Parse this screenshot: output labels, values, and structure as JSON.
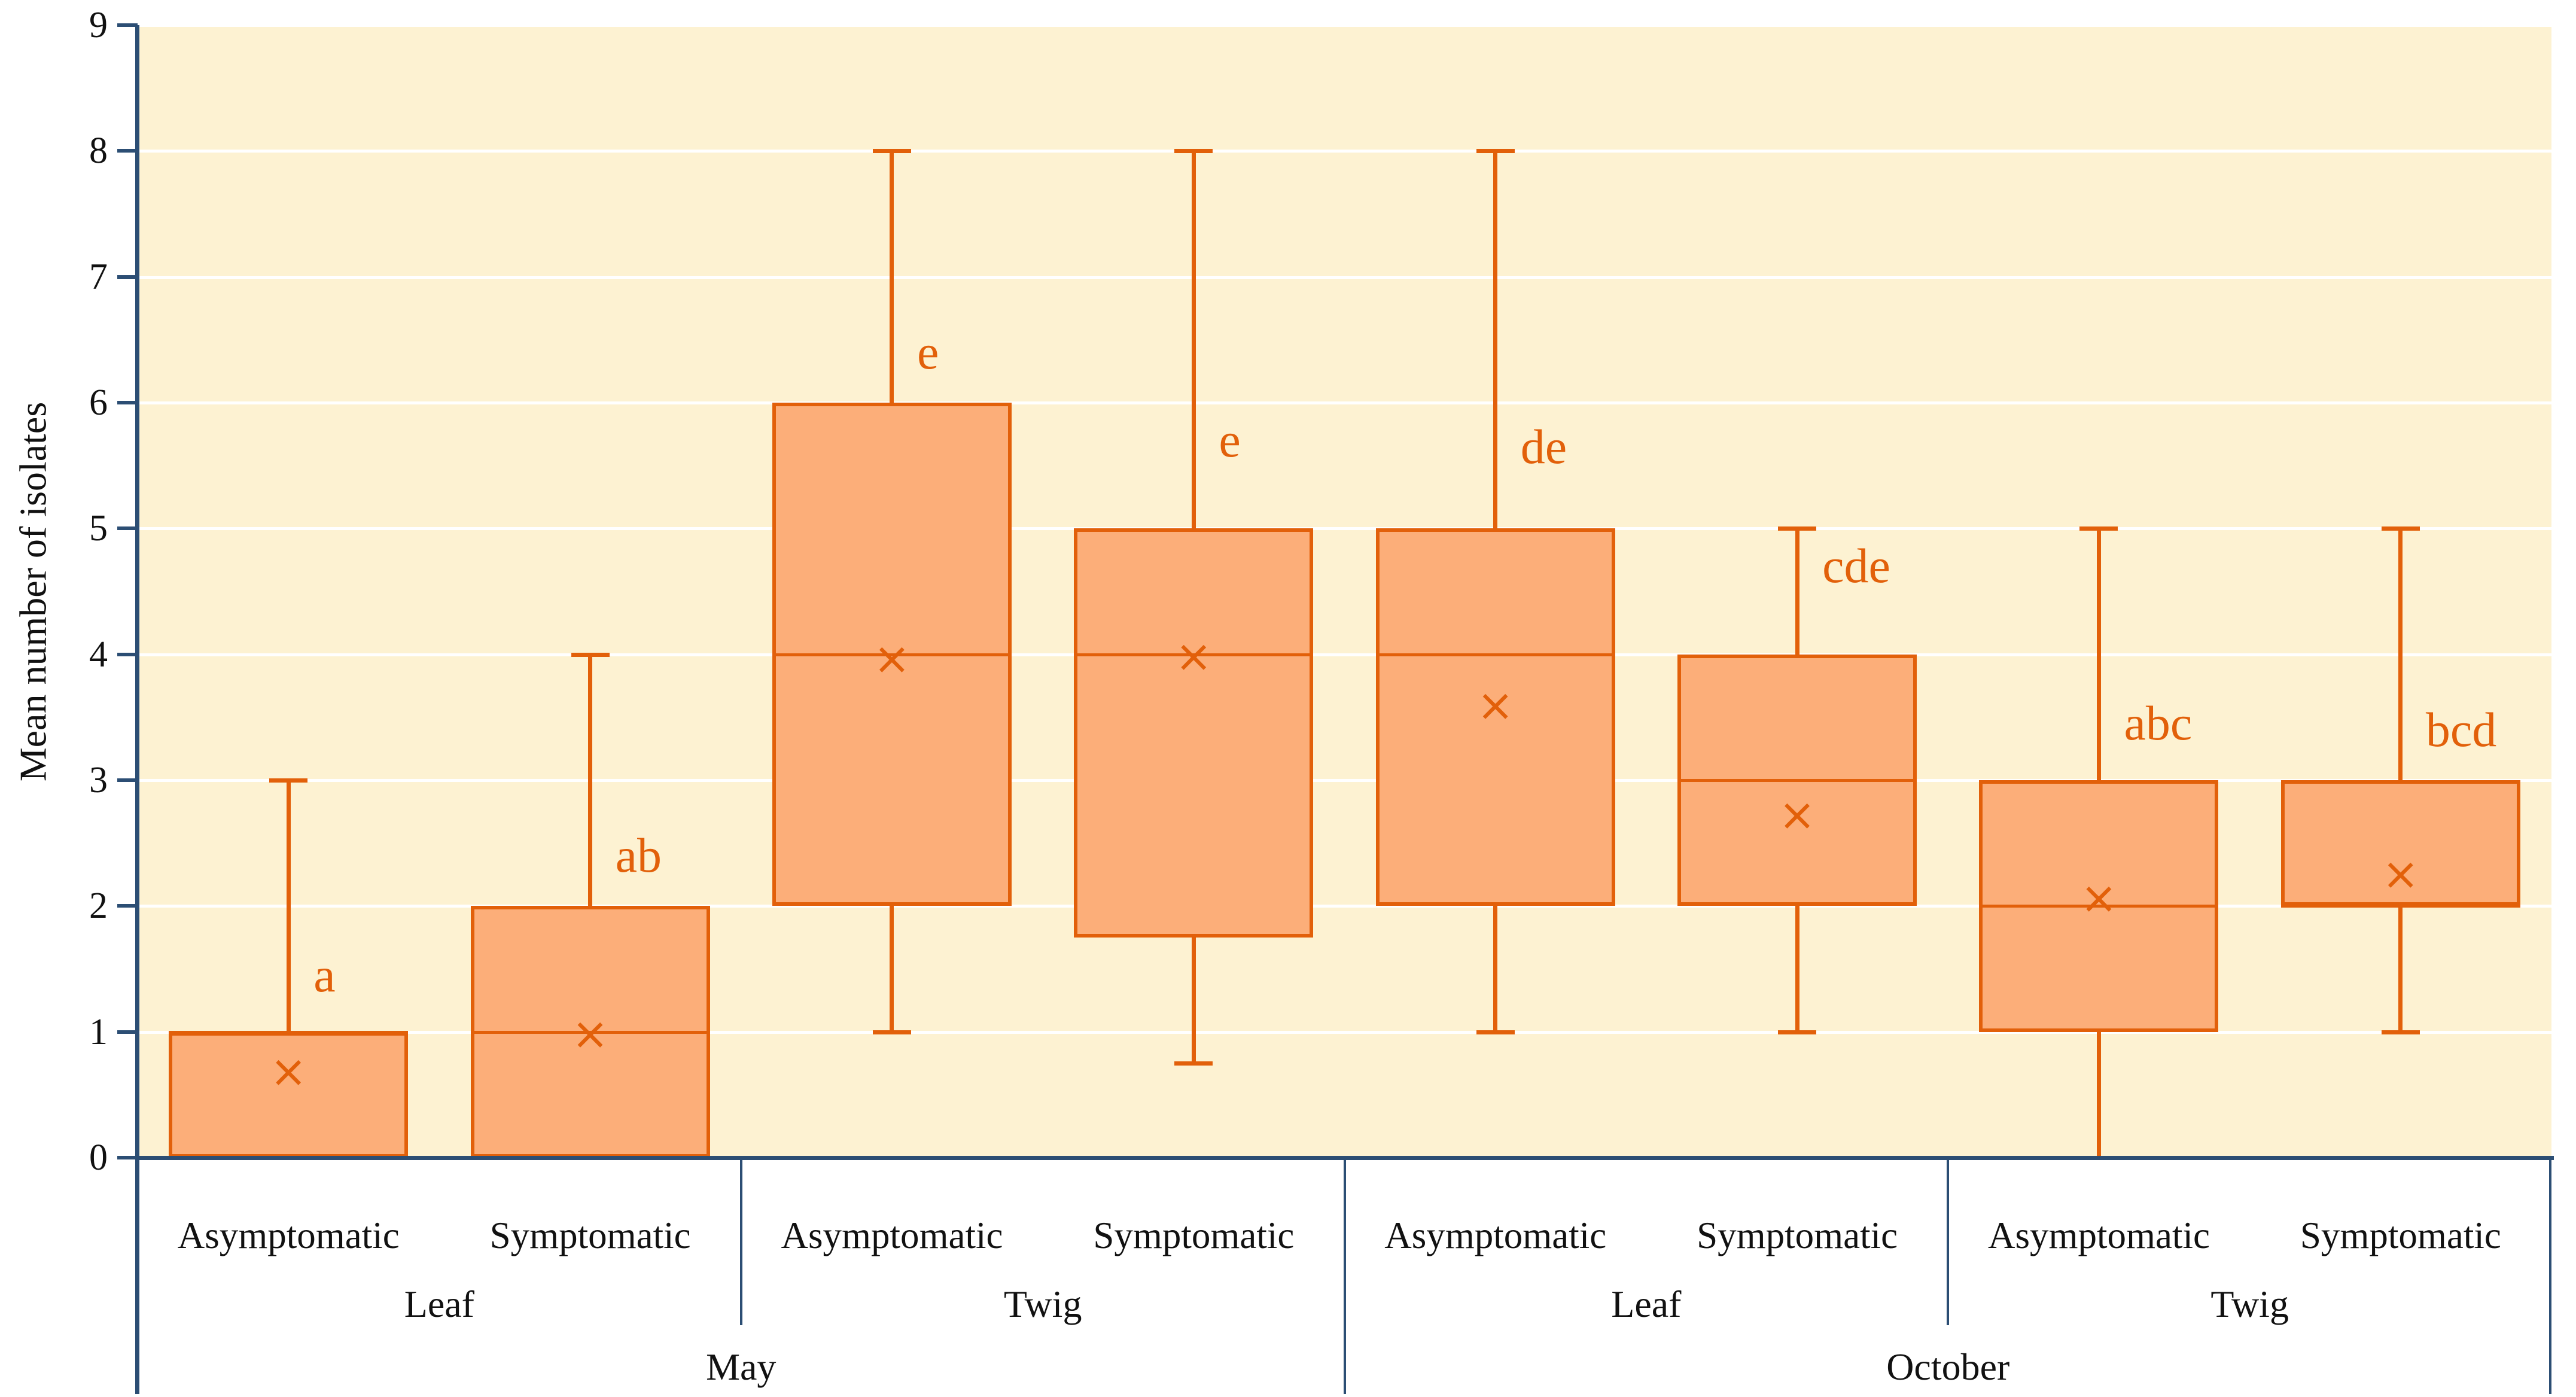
{
  "chart_data": {
    "type": "box",
    "title": "",
    "xlabel": "",
    "ylabel": "Mean number of isolates",
    "ylim": [
      0,
      9
    ],
    "yticks": [
      0,
      1,
      2,
      3,
      4,
      5,
      6,
      7,
      8,
      9
    ],
    "grid": "horizontal white gridlines on cream plot background",
    "legend": "none",
    "plot_background": "#FDF2D2",
    "box_fill": "#FCAE79",
    "box_stroke": "#E2600A",
    "axis_color": "#2C4E74",
    "gridline_color": "#FFFFFF",
    "letter_color": "#E2600A",
    "groups": {
      "months": [
        "May",
        "October"
      ],
      "tissues": [
        "Leaf",
        "Twig"
      ],
      "conditions": [
        "Asymptomatic",
        "Symptomatic"
      ]
    },
    "x_axis": {
      "condition_row": [
        "Asymptomatic",
        "Symptomatic",
        "Asymptomatic",
        "Symptomatic",
        "Asymptomatic",
        "Symptomatic",
        "Asymptomatic",
        "Symptomatic"
      ],
      "tissue_row": [
        "Leaf",
        "Twig",
        "Leaf",
        "Twig"
      ],
      "month_row": [
        "May",
        "October"
      ]
    },
    "series": [
      {
        "month": "May",
        "tissue": "Leaf",
        "condition": "Asymptomatic",
        "min": 0,
        "q1": 0,
        "median": 1,
        "q3": 1,
        "max": 3,
        "mean": 0.67,
        "letter": "a",
        "letter_y": 1.45
      },
      {
        "month": "May",
        "tissue": "Leaf",
        "condition": "Symptomatic",
        "min": 0,
        "q1": 0,
        "median": 1,
        "q3": 2,
        "max": 4,
        "mean": 0.97,
        "letter": "ab",
        "letter_y": 2.4
      },
      {
        "month": "May",
        "tissue": "Twig",
        "condition": "Asymptomatic",
        "min": 1,
        "q1": 2,
        "median": 4,
        "q3": 6,
        "max": 8,
        "mean": 3.95,
        "letter": "e",
        "letter_y": 6.4
      },
      {
        "month": "May",
        "tissue": "Twig",
        "condition": "Symptomatic",
        "min": 0.75,
        "q1": 1.75,
        "median": 4,
        "q3": 5,
        "max": 8,
        "mean": 3.97,
        "letter": "e",
        "letter_y": 5.7
      },
      {
        "month": "October",
        "tissue": "Leaf",
        "condition": "Asymptomatic",
        "min": 1,
        "q1": 2,
        "median": 4,
        "q3": 5,
        "max": 8,
        "mean": 3.58,
        "letter": "de",
        "letter_y": 5.65
      },
      {
        "month": "October",
        "tissue": "Leaf",
        "condition": "Symptomatic",
        "min": 1,
        "q1": 2,
        "median": 3,
        "q3": 4,
        "max": 5,
        "mean": 2.71,
        "letter": "cde",
        "letter_y": 4.7
      },
      {
        "month": "October",
        "tissue": "Twig",
        "condition": "Asymptomatic",
        "min": 0,
        "q1": 1,
        "median": 2,
        "q3": 3,
        "max": 5,
        "mean": 2.05,
        "letter": "abc",
        "letter_y": 3.45
      },
      {
        "month": "October",
        "tissue": "Twig",
        "condition": "Symptomatic",
        "min": 1,
        "q1": 2,
        "median": 2,
        "q3": 3,
        "max": 5,
        "mean": 2.24,
        "letter": "bcd",
        "letter_y": 3.4
      }
    ],
    "marker": {
      "mean_symbol": "×"
    }
  }
}
